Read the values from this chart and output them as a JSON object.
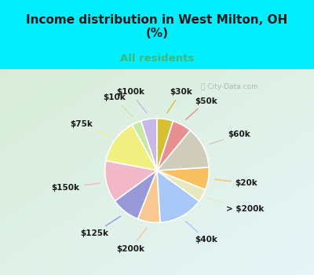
{
  "title": "Income distribution in West Milton, OH\n(%)",
  "subtitle": "All residents",
  "title_color": "#1a1a1a",
  "subtitle_color": "#3db87a",
  "background_color": "#00eeff",
  "labels": [
    "$100k",
    "$10k",
    "$75k",
    "$150k",
    "$125k",
    "$200k",
    "$40k",
    "> $200k",
    "$20k",
    "$60k",
    "$50k",
    "$30k"
  ],
  "values": [
    5,
    3,
    14,
    13,
    9,
    7,
    14,
    4,
    7,
    13,
    6,
    5
  ],
  "colors": [
    "#c8b8e8",
    "#c8e8a8",
    "#f0f080",
    "#f0b8c8",
    "#9898d8",
    "#f8c890",
    "#a8c8f8",
    "#e8e8c0",
    "#f8c060",
    "#d0ccbc",
    "#e89090",
    "#d4c030"
  ],
  "startangle": 90,
  "wedge_edge_color": "white",
  "label_fontsize": 7.5,
  "label_color": "#1a1a1a",
  "watermark": "City-Data.com"
}
